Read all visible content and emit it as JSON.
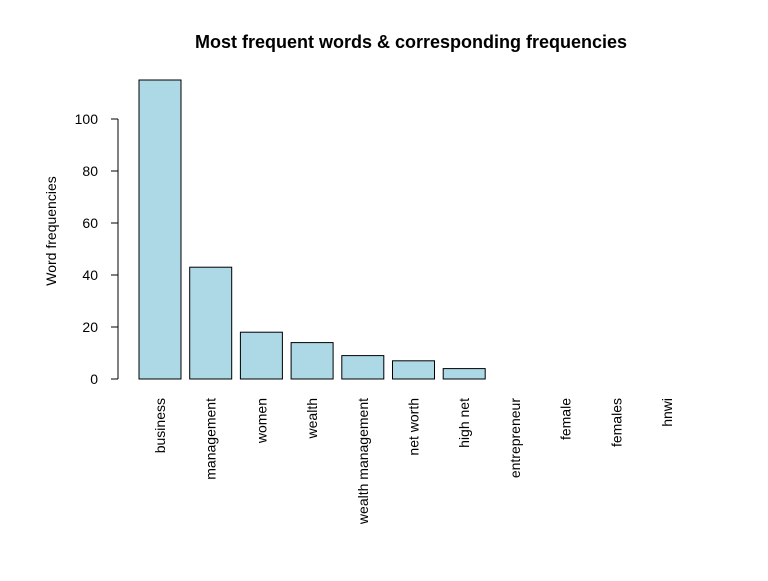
{
  "chart_data": {
    "type": "bar",
    "title": "Most frequent words & corresponding frequencies",
    "xlabel": "",
    "ylabel": "Word frequencies",
    "categories": [
      "business",
      "management",
      "women",
      "wealth",
      "wealth management",
      "net worth",
      "high net",
      "entrepreneur",
      "female",
      "females",
      "hnwi"
    ],
    "values": [
      115,
      43,
      18,
      14,
      9,
      7,
      4,
      0,
      0,
      0,
      0
    ],
    "yticks": [
      "0",
      "20",
      "40",
      "60",
      "80",
      "100"
    ],
    "ylim": [
      0,
      115
    ],
    "bar_color": "#add8e6",
    "grid": false,
    "legend": "none"
  }
}
